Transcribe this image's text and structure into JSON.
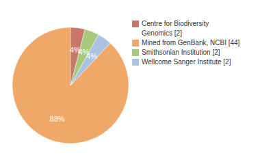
{
  "chart_data": {
    "type": "pie",
    "categories": [
      "Mined from GenBank, NCBI [44]",
      "Wellcome Sanger Institute [2]",
      "Smithsonian Institution [2]",
      "Centre for Biodiversity\nGenomics [2]"
    ],
    "values": [
      88,
      4,
      4,
      4
    ],
    "value_labels": [
      "88%",
      "4%",
      "4%",
      "4%"
    ],
    "colors": [
      "#f0a868",
      "#a8c4e0",
      "#a8c87c",
      "#c87868"
    ],
    "data_labels": true,
    "legend": "right"
  }
}
